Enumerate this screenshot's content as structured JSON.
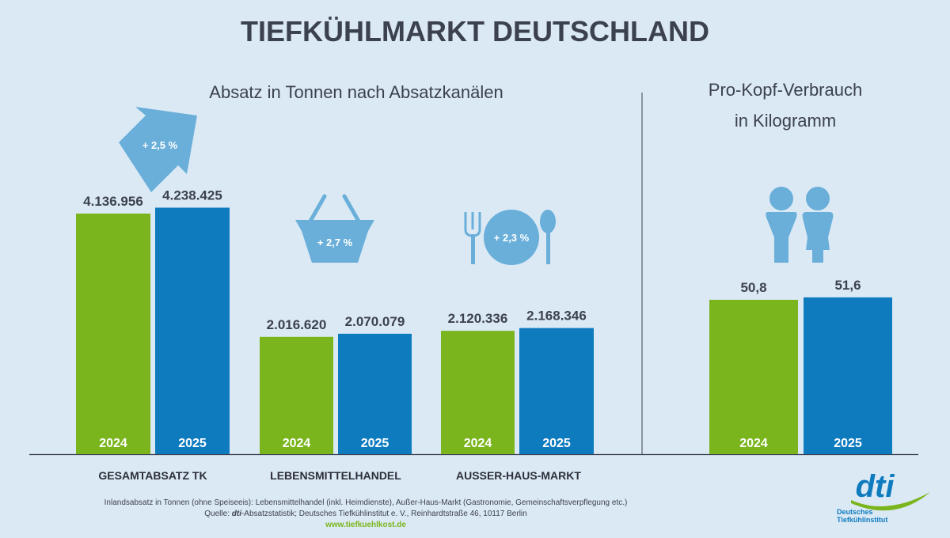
{
  "title": "TIEFKÜHLMARKT DEUTSCHLAND",
  "colors": {
    "background": "#dbe9f4",
    "2024": "#7ab51d",
    "2025": "#0e7bbf",
    "icon": "#6aafd9",
    "text": "#3c4150",
    "link": "#7ab51d"
  },
  "chart_data": [
    {
      "type": "bar",
      "title": "Absatz in Tonnen nach Absatzkanälen",
      "categories": [
        "GESAMTABSATZ TK",
        "LEBENSMITTELHANDEL",
        "AUSSER-HAUS-MARKT"
      ],
      "series": [
        {
          "name": "2024",
          "values": [
            4136956,
            2016620,
            2120336
          ],
          "labels": [
            "4.136.956",
            "2.016.620",
            "2.120.336"
          ]
        },
        {
          "name": "2025",
          "values": [
            4238425,
            2070079,
            2168346
          ],
          "labels": [
            "4.238.425",
            "2.070.079",
            "2.168.346"
          ]
        }
      ],
      "changes": [
        "+ 2,5 %",
        "+ 2,7 %",
        "+ 2,3 %"
      ],
      "icons": [
        "arrow-up-right-icon",
        "shopping-basket-icon",
        "cutlery-plate-icon"
      ]
    },
    {
      "type": "bar",
      "title_lines": [
        "Pro-Kopf-Verbrauch",
        "in Kilogramm"
      ],
      "categories": [
        ""
      ],
      "series": [
        {
          "name": "2024",
          "values": [
            50.8
          ],
          "labels": [
            "50,8"
          ]
        },
        {
          "name": "2025",
          "values": [
            51.6
          ],
          "labels": [
            "51,6"
          ]
        }
      ],
      "icons": [
        "people-icon"
      ]
    }
  ],
  "footer": {
    "note": "Inlandsabsatz in Tonnen (ohne Speiseeis): Lebensmittelhandel (inkl. Heimdienste), Außer-Haus-Markt (Gastronomie, Gemeinschaftsverpflegung etc.)",
    "source_prefix": "Quelle: ",
    "source_brand": "dti",
    "source_rest": "-Absatzstatistik; Deutsches Tiefkühlinstitut e. V., Reinhardtstraße 46, 10117 Berlin",
    "url": "www.tiefkuehlkost.de"
  },
  "logo": {
    "text": "dti",
    "line1": "Deutsches",
    "line2": "Tiefkühlinstitut"
  }
}
